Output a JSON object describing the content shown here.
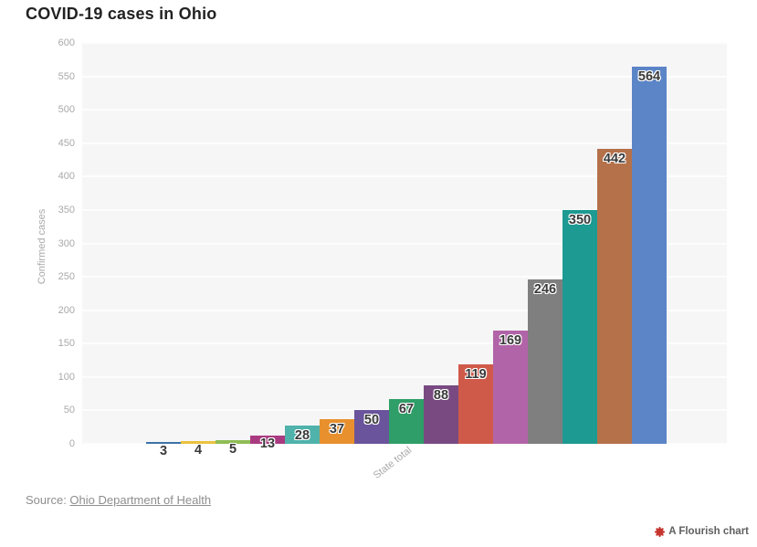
{
  "title": "COVID-19 cases in Ohio",
  "source": {
    "prefix": "Source: ",
    "link_text": "Ohio Department of Health"
  },
  "badge": {
    "label": "A Flourish chart",
    "icon_color": "#c5342c"
  },
  "chart_data": {
    "type": "bar",
    "title": "COVID-19 cases in Ohio",
    "xlabel": "",
    "ylabel": "Confirmed cases",
    "x_tick_label": "State total",
    "ylim": [
      0,
      600
    ],
    "ytick_step": 50,
    "grid": true,
    "legend_position": "none",
    "values": [
      3,
      4,
      5,
      13,
      28,
      37,
      50,
      67,
      88,
      119,
      169,
      246,
      350,
      442,
      564
    ],
    "bar_colors": [
      "#3d74a6",
      "#e9c23f",
      "#8fbd56",
      "#aa3a80",
      "#4fb2ab",
      "#e7902d",
      "#6a549c",
      "#2f9e68",
      "#794a82",
      "#d05a4a",
      "#b264a8",
      "#7f7f7f",
      "#1d9a92",
      "#b5714a",
      "#5c85c7"
    ],
    "plot_background": "#f6f6f7"
  }
}
